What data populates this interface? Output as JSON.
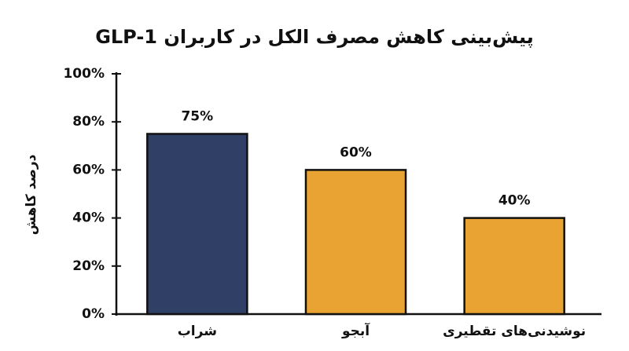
{
  "chart_data": {
    "type": "bar",
    "title": "پیش‌بینی کاهش مصرف الکل در کاربران GLP-1",
    "y_label": "درصد کاهش",
    "categories": [
      "شراب",
      "آبجو",
      "نوشیدنی‌های تقطیری"
    ],
    "values": [
      75,
      60,
      40
    ],
    "value_labels": [
      "75%",
      "60%",
      "40%"
    ],
    "colors": [
      "#2f3f66",
      "#e8a332",
      "#e8a332"
    ],
    "ylim": [
      0,
      100
    ],
    "yticks": [
      {
        "value": 0,
        "label": "0%"
      },
      {
        "value": 20,
        "label": "20%"
      },
      {
        "value": 40,
        "label": "40%"
      },
      {
        "value": 60,
        "label": "60%"
      },
      {
        "value": 80,
        "label": "80%"
      },
      {
        "value": 100,
        "label": "100%"
      }
    ],
    "grid": false
  }
}
